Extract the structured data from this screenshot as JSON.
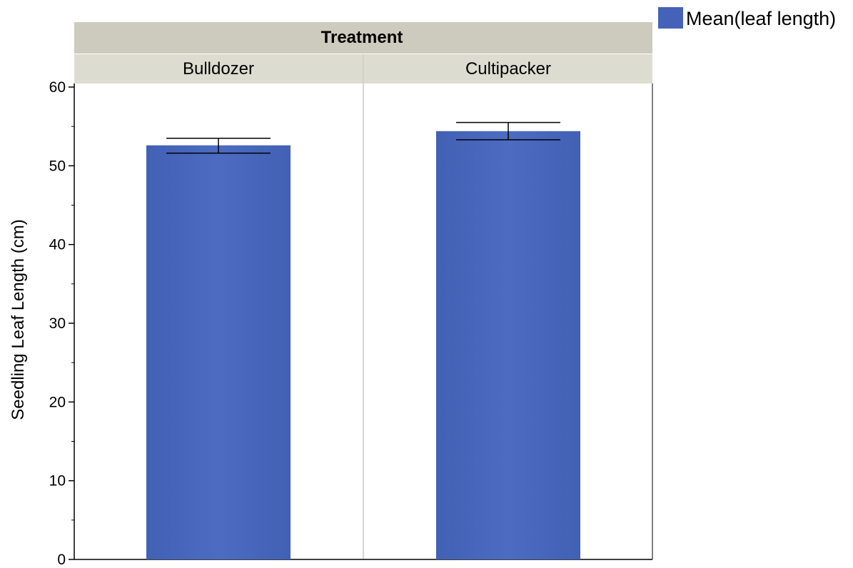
{
  "colors": {
    "bar": "#4463b8",
    "bar_light": "#4c6cc2",
    "header_band": "#cdcbbd",
    "panel_band": "#dcdcd0",
    "panel_divider": "#c8c8c8",
    "error_bar": "#000000"
  },
  "chart_data": {
    "type": "bar",
    "title": "Treatment",
    "categories": [
      "Bulldozer",
      "Cultipacker"
    ],
    "series": [
      {
        "name": "Mean(leaf length)",
        "values": [
          52.6,
          54.4
        ],
        "error_low": [
          51.6,
          53.3
        ],
        "error_high": [
          53.5,
          55.5
        ]
      }
    ],
    "xlabel": "",
    "ylabel": "Seedling Leaf Length (cm)",
    "ylim": [
      0,
      60
    ],
    "yticks": [
      0,
      10,
      20,
      30,
      40,
      50,
      60
    ],
    "grid": false,
    "legend_position": "top-right"
  }
}
